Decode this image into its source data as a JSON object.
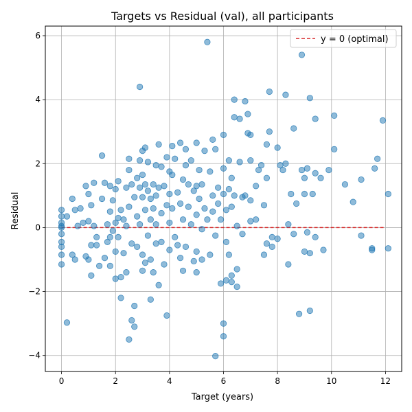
{
  "chart_data": {
    "type": "scatter",
    "title": "Targets vs Residual (val), all participants",
    "xlabel": "Target (years)",
    "ylabel": "Residual",
    "xlim": [
      -0.6,
      12.6
    ],
    "ylim": [
      -4.5,
      6.3
    ],
    "xticks": [
      0,
      2,
      4,
      6,
      8,
      10,
      12
    ],
    "yticks": [
      -4,
      -2,
      0,
      2,
      4,
      6
    ],
    "xtick_labels": [
      "0",
      "2",
      "4",
      "6",
      "8",
      "10",
      "12"
    ],
    "ytick_labels": [
      "−4",
      "−2",
      "0",
      "2",
      "4",
      "6"
    ],
    "grid": true,
    "legend_position": "top-right",
    "reference_line": {
      "y": 0,
      "label": "y = 0 (optimal)",
      "color": "#d62728",
      "style": "dashed"
    },
    "marker_color": "#1f77b4",
    "points": [
      [
        0,
        0.55
      ],
      [
        0,
        0.35
      ],
      [
        0,
        0.15
      ],
      [
        0,
        0.0
      ],
      [
        0,
        -0.2
      ],
      [
        0,
        -0.45
      ],
      [
        0,
        -0.6
      ],
      [
        0,
        -0.85
      ],
      [
        0,
        -1.15
      ],
      [
        0,
        0.05
      ],
      [
        0.2,
        -2.97
      ],
      [
        0.2,
        0.35
      ],
      [
        0.4,
        -0.85
      ],
      [
        0.4,
        0.9
      ],
      [
        0.5,
        -1.0
      ],
      [
        0.5,
        0.55
      ],
      [
        0.6,
        0.05
      ],
      [
        0.7,
        0.6
      ],
      [
        0.8,
        0.15
      ],
      [
        0.9,
        -0.9
      ],
      [
        0.9,
        1.3
      ],
      [
        1.0,
        1.05
      ],
      [
        1.0,
        0.2
      ],
      [
        1.0,
        -1.0
      ],
      [
        1.1,
        -0.55
      ],
      [
        1.1,
        -1.5
      ],
      [
        1.1,
        0.7
      ],
      [
        1.2,
        1.4
      ],
      [
        1.2,
        0.05
      ],
      [
        1.3,
        -0.3
      ],
      [
        1.3,
        -0.55
      ],
      [
        1.4,
        -1.2
      ],
      [
        1.5,
        2.25
      ],
      [
        1.5,
        0.9
      ],
      [
        1.6,
        1.4
      ],
      [
        1.6,
        -0.95
      ],
      [
        1.7,
        0.1
      ],
      [
        1.7,
        -0.45
      ],
      [
        1.8,
        1.3
      ],
      [
        1.8,
        0.5
      ],
      [
        1.8,
        -0.3
      ],
      [
        1.8,
        -1.2
      ],
      [
        1.9,
        0.85
      ],
      [
        1.9,
        -0.1
      ],
      [
        2.0,
        0.15
      ],
      [
        2.0,
        1.2
      ],
      [
        2.0,
        -0.75
      ],
      [
        2.0,
        -1.6
      ],
      [
        2.1,
        1.45
      ],
      [
        2.1,
        0.3
      ],
      [
        2.1,
        -0.3
      ],
      [
        2.2,
        -2.2
      ],
      [
        2.2,
        0.55
      ],
      [
        2.2,
        -1.55
      ],
      [
        2.3,
        0.25
      ],
      [
        2.3,
        -0.8
      ],
      [
        2.4,
        1.25
      ],
      [
        2.4,
        -1.4
      ],
      [
        2.4,
        0.05
      ],
      [
        2.5,
        2.15
      ],
      [
        2.5,
        1.8
      ],
      [
        2.5,
        0.65
      ],
      [
        2.5,
        -3.5
      ],
      [
        2.6,
        1.35
      ],
      [
        2.6,
        -0.5
      ],
      [
        2.6,
        -2.9
      ],
      [
        2.7,
        -2.45
      ],
      [
        2.7,
        -3.1
      ],
      [
        2.7,
        0.95
      ],
      [
        2.8,
        1.55
      ],
      [
        2.8,
        0.35
      ],
      [
        2.8,
        -0.6
      ],
      [
        2.9,
        4.4
      ],
      [
        2.9,
        2.1
      ],
      [
        2.9,
        1.25
      ],
      [
        2.9,
        0.1
      ],
      [
        3.0,
        2.4
      ],
      [
        3.0,
        1.65
      ],
      [
        3.0,
        0.95
      ],
      [
        3.0,
        -0.85
      ],
      [
        3.0,
        -1.35
      ],
      [
        3.1,
        2.5
      ],
      [
        3.1,
        1.35
      ],
      [
        3.1,
        0.55
      ],
      [
        3.1,
        -1.1
      ],
      [
        3.2,
        2.05
      ],
      [
        3.2,
        1.15
      ],
      [
        3.2,
        -0.25
      ],
      [
        3.3,
        0.9
      ],
      [
        3.3,
        0.25
      ],
      [
        3.3,
        -1.0
      ],
      [
        3.3,
        -2.25
      ],
      [
        3.4,
        1.35
      ],
      [
        3.4,
        0.6
      ],
      [
        3.4,
        -1.4
      ],
      [
        3.5,
        1.95
      ],
      [
        3.5,
        1.0
      ],
      [
        3.5,
        0.1
      ],
      [
        3.5,
        -0.5
      ],
      [
        3.6,
        2.6
      ],
      [
        3.6,
        1.25
      ],
      [
        3.6,
        -1.8
      ],
      [
        3.7,
        1.9
      ],
      [
        3.7,
        0.45
      ],
      [
        3.7,
        -0.45
      ],
      [
        3.8,
        1.3
      ],
      [
        3.8,
        -1.15
      ],
      [
        3.9,
        2.2
      ],
      [
        3.9,
        0.7
      ],
      [
        3.9,
        -2.75
      ],
      [
        4.0,
        1.75
      ],
      [
        4.0,
        1.05
      ],
      [
        4.0,
        0.15
      ],
      [
        4.0,
        -0.7
      ],
      [
        4.1,
        2.55
      ],
      [
        4.1,
        1.65
      ],
      [
        4.1,
        0.6
      ],
      [
        4.2,
        2.15
      ],
      [
        4.2,
        -0.3
      ],
      [
        4.3,
        1.1
      ],
      [
        4.3,
        -0.55
      ],
      [
        4.4,
        2.65
      ],
      [
        4.4,
        0.75
      ],
      [
        4.4,
        -0.95
      ],
      [
        4.5,
        1.5
      ],
      [
        4.5,
        0.25
      ],
      [
        4.5,
        -1.35
      ],
      [
        4.6,
        2.45
      ],
      [
        4.6,
        1.95
      ],
      [
        4.6,
        -0.6
      ],
      [
        4.7,
        1.35
      ],
      [
        4.7,
        0.65
      ],
      [
        4.8,
        2.1
      ],
      [
        4.8,
        0.1
      ],
      [
        4.9,
        -1.05
      ],
      [
        4.9,
        1.15
      ],
      [
        5.0,
        2.65
      ],
      [
        5.0,
        1.3
      ],
      [
        5.0,
        0.4
      ],
      [
        5.0,
        -0.75
      ],
      [
        5.0,
        -1.4
      ],
      [
        5.1,
        1.8
      ],
      [
        5.1,
        0.9
      ],
      [
        5.2,
        1.35
      ],
      [
        5.2,
        -0.05
      ],
      [
        5.2,
        -1.0
      ],
      [
        5.3,
        2.4
      ],
      [
        5.3,
        0.6
      ],
      [
        5.4,
        5.8
      ],
      [
        5.4,
        0.25
      ],
      [
        5.5,
        1.75
      ],
      [
        5.5,
        -0.85
      ],
      [
        5.6,
        2.75
      ],
      [
        5.6,
        1.0
      ],
      [
        5.6,
        0.5
      ],
      [
        5.7,
        -4.02
      ],
      [
        5.7,
        2.45
      ],
      [
        5.7,
        -0.25
      ],
      [
        5.8,
        1.25
      ],
      [
        5.8,
        0.75
      ],
      [
        5.9,
        -1.75
      ],
      [
        5.9,
        0.25
      ],
      [
        6.0,
        -3.0
      ],
      [
        6.0,
        -3.4
      ],
      [
        6.0,
        2.9
      ],
      [
        6.0,
        1.85
      ],
      [
        6.0,
        1.05
      ],
      [
        6.1,
        0.55
      ],
      [
        6.1,
        -0.45
      ],
      [
        6.1,
        -1.65
      ],
      [
        6.2,
        2.1
      ],
      [
        6.2,
        1.2
      ],
      [
        6.2,
        -0.85
      ],
      [
        6.3,
        1.55
      ],
      [
        6.3,
        0.65
      ],
      [
        6.3,
        -1.5
      ],
      [
        6.3,
        -1.7
      ],
      [
        6.4,
        4.0
      ],
      [
        6.4,
        3.45
      ],
      [
        6.4,
        1.0
      ],
      [
        6.5,
        0.05
      ],
      [
        6.5,
        -1.3
      ],
      [
        6.5,
        -1.85
      ],
      [
        6.6,
        3.4
      ],
      [
        6.6,
        2.05
      ],
      [
        6.7,
        0.95
      ],
      [
        6.7,
        -0.2
      ],
      [
        6.8,
        3.95
      ],
      [
        6.8,
        1.0
      ],
      [
        6.9,
        3.55
      ],
      [
        6.9,
        2.95
      ],
      [
        7.0,
        2.9
      ],
      [
        7.0,
        2.1
      ],
      [
        7.0,
        0.85
      ],
      [
        7.0,
        0.2
      ],
      [
        7.2,
        1.3
      ],
      [
        7.2,
        0.25
      ],
      [
        7.3,
        1.8
      ],
      [
        7.4,
        1.95
      ],
      [
        7.5,
        0.7
      ],
      [
        7.5,
        -0.85
      ],
      [
        7.6,
        2.6
      ],
      [
        7.6,
        1.55
      ],
      [
        7.6,
        -0.5
      ],
      [
        7.7,
        4.25
      ],
      [
        7.7,
        3.0
      ],
      [
        7.8,
        -0.3
      ],
      [
        7.8,
        -0.6
      ],
      [
        8.0,
        2.5
      ],
      [
        8.0,
        -0.35
      ],
      [
        8.1,
        1.95
      ],
      [
        8.2,
        1.8
      ],
      [
        8.3,
        4.15
      ],
      [
        8.3,
        2.0
      ],
      [
        8.4,
        0.1
      ],
      [
        8.4,
        -1.15
      ],
      [
        8.5,
        1.05
      ],
      [
        8.6,
        3.1
      ],
      [
        8.6,
        -0.2
      ],
      [
        8.7,
        0.75
      ],
      [
        8.8,
        -2.7
      ],
      [
        8.9,
        5.4
      ],
      [
        8.9,
        1.8
      ],
      [
        9.0,
        1.55
      ],
      [
        9.0,
        1.05
      ],
      [
        9.0,
        -0.75
      ],
      [
        9.1,
        1.85
      ],
      [
        9.1,
        -0.15
      ],
      [
        9.2,
        4.05
      ],
      [
        9.2,
        -0.8
      ],
      [
        9.2,
        -2.6
      ],
      [
        9.3,
        1.05
      ],
      [
        9.4,
        3.4
      ],
      [
        9.4,
        1.7
      ],
      [
        9.4,
        -0.3
      ],
      [
        9.6,
        1.55
      ],
      [
        9.7,
        -0.7
      ],
      [
        9.9,
        1.8
      ],
      [
        10.1,
        3.5
      ],
      [
        10.1,
        2.45
      ],
      [
        10.5,
        1.35
      ],
      [
        10.8,
        0.8
      ],
      [
        11.1,
        1.5
      ],
      [
        11.1,
        -0.25
      ],
      [
        11.5,
        -0.65
      ],
      [
        11.5,
        -0.7
      ],
      [
        11.6,
        1.85
      ],
      [
        11.7,
        2.15
      ],
      [
        11.9,
        3.35
      ],
      [
        12.1,
        1.05
      ],
      [
        12.1,
        -0.65
      ]
    ]
  }
}
